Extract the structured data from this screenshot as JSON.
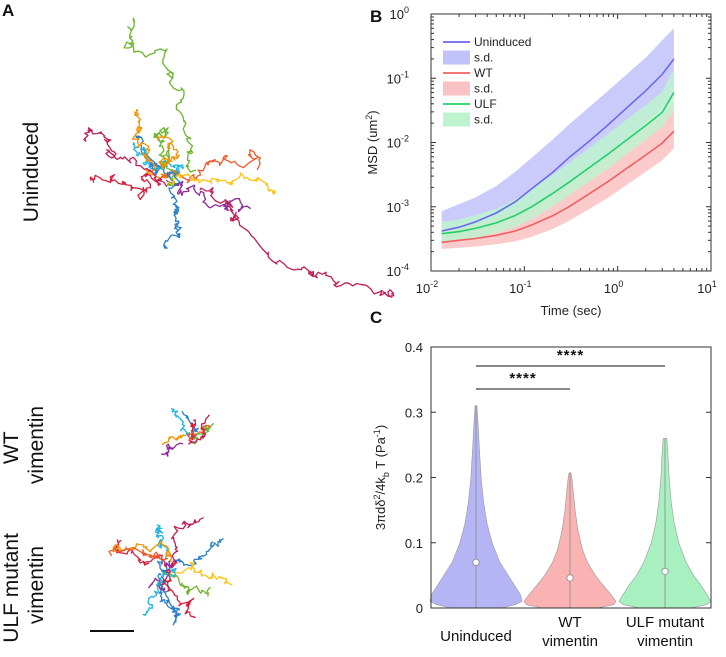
{
  "panels": {
    "a": {
      "letter": "A",
      "row_labels": [
        {
          "lines": [
            "Uninduced"
          ]
        },
        {
          "lines": [
            "WT",
            "vimentin"
          ]
        },
        {
          "lines": [
            "ULF mutant",
            "vimentin"
          ]
        }
      ],
      "track_colors": [
        "#2b7fc6",
        "#1fb3e0",
        "#d8203c",
        "#f39200",
        "#f05a28",
        "#8b2a9b",
        "#6cb52d",
        "#c21d55",
        "#ffc20e"
      ]
    },
    "b": {
      "letter": "B",
      "colors": {
        "uninduced": "#6a6af0",
        "wt": "#f06060",
        "ulf": "#22d06a",
        "uninduced_sd": "#c2c2fa",
        "wt_sd": "#fac2c2",
        "ulf_sd": "#bdf3cf"
      }
    },
    "c": {
      "letter": "C",
      "colors": {
        "uninduced": "#b5b5f5",
        "wt": "#fab3b3",
        "ulf": "#a8f0c0"
      },
      "significance": [
        {
          "label": "****",
          "from": 0,
          "to": 1
        },
        {
          "label": "****",
          "from": 0,
          "to": 2
        }
      ]
    }
  },
  "chart_data": [
    {
      "type": "line",
      "panel": "B",
      "x_scale": "log",
      "y_scale": "log",
      "xlabel": "Time (sec)",
      "ylabel": "MSD (um²)",
      "ylabel_parts": [
        "MSD (um",
        "2",
        ")"
      ],
      "xlim": [
        0.01,
        10
      ],
      "ylim": [
        0.0001,
        1
      ],
      "xticks": [
        0.01,
        0.1,
        1,
        10
      ],
      "xtick_labels": [
        [
          "10",
          "-2"
        ],
        [
          "10",
          "-1"
        ],
        [
          "10",
          "0"
        ],
        [
          "10",
          "1"
        ]
      ],
      "yticks": [
        0.0001,
        0.001,
        0.01,
        0.1,
        1
      ],
      "ytick_labels": [
        [
          "10",
          "-4"
        ],
        [
          "10",
          "-3"
        ],
        [
          "10",
          "-2"
        ],
        [
          "10",
          "-1"
        ],
        [
          "10",
          "0"
        ]
      ],
      "legend": [
        "Uninduced",
        "s.d.",
        "WT",
        "s.d.",
        "ULF",
        "s.d."
      ],
      "x": [
        0.013,
        0.02,
        0.03,
        0.05,
        0.08,
        0.12,
        0.2,
        0.3,
        0.5,
        0.8,
        1.2,
        2,
        3,
        4
      ],
      "series": [
        {
          "name": "Uninduced",
          "values": [
            0.00042,
            0.00048,
            0.00058,
            0.0008,
            0.0012,
            0.0019,
            0.0034,
            0.0058,
            0.0106,
            0.0191,
            0.0329,
            0.0639,
            0.115,
            0.2
          ],
          "lower": [
            0.00032,
            0.00035,
            0.0004,
            0.00052,
            0.00071,
            0.001,
            0.0016,
            0.0025,
            0.0042,
            0.0069,
            0.0111,
            0.0203,
            0.0346,
            0.055
          ],
          "upper": [
            0.00085,
            0.0011,
            0.0014,
            0.0021,
            0.0035,
            0.0058,
            0.011,
            0.019,
            0.036,
            0.065,
            0.11,
            0.21,
            0.39,
            0.6
          ]
        },
        {
          "name": "WT",
          "values": [
            0.00028,
            0.0003,
            0.00032,
            0.00036,
            0.00042,
            0.00052,
            0.00072,
            0.001,
            0.0016,
            0.0025,
            0.0038,
            0.0064,
            0.0098,
            0.015
          ],
          "lower": [
            0.00022,
            0.00023,
            0.00024,
            0.00026,
            0.00029,
            0.00034,
            0.00045,
            0.0006,
            0.00093,
            0.0014,
            0.0021,
            0.0035,
            0.0053,
            0.0081
          ],
          "upper": [
            0.00045,
            0.00049,
            0.00054,
            0.00064,
            0.00079,
            0.0011,
            0.0016,
            0.0024,
            0.0039,
            0.0064,
            0.01,
            0.0172,
            0.0272,
            0.043
          ]
        },
        {
          "name": "ULF",
          "values": [
            0.00038,
            0.00041,
            0.00046,
            0.00056,
            0.00073,
            0.001,
            0.0016,
            0.0024,
            0.0041,
            0.0067,
            0.0105,
            0.0184,
            0.0294,
            0.06
          ],
          "lower": [
            0.00028,
            0.0003,
            0.00033,
            0.00039,
            0.00049,
            0.00064,
            0.001,
            0.0015,
            0.0025,
            0.004,
            0.0063,
            0.011,
            0.0175,
            0.033
          ],
          "upper": [
            0.00058,
            0.00064,
            0.00074,
            0.00093,
            0.0013,
            0.0019,
            0.0031,
            0.0048,
            0.0083,
            0.0138,
            0.0218,
            0.0384,
            0.0617,
            0.14
          ]
        }
      ]
    },
    {
      "type": "violin",
      "panel": "C",
      "ylabel": "3πdδ²/4k_bT (Pa⁻¹)",
      "ylabel_parts": [
        "3πdδ",
        "2",
        "/4k",
        "b",
        " T (Pa",
        "-1",
        ")"
      ],
      "ylim": [
        0,
        0.4
      ],
      "yticks": [
        0,
        0.1,
        0.2,
        0.3,
        0.4
      ],
      "ytick_labels": [
        "0",
        "0.1",
        "0.2",
        "0.3",
        "0.4"
      ],
      "categories": [
        {
          "lines": [
            "Uninduced"
          ]
        },
        {
          "lines": [
            "WT",
            "vimentin"
          ]
        },
        {
          "lines": [
            "ULF mutant",
            "vimentin"
          ]
        }
      ],
      "series": [
        {
          "name": "Uninduced",
          "median": 0.07,
          "max": 0.31,
          "profile_y": [
            0,
            0.005,
            0.01,
            0.02,
            0.03,
            0.05,
            0.07,
            0.1,
            0.13,
            0.16,
            0.2,
            0.25,
            0.29,
            0.31
          ],
          "profile_w": [
            0.55,
            0.85,
            1.0,
            0.97,
            0.88,
            0.7,
            0.52,
            0.35,
            0.24,
            0.17,
            0.11,
            0.07,
            0.04,
            0.02
          ]
        },
        {
          "name": "WT vimentin",
          "median": 0.046,
          "max": 0.207,
          "profile_y": [
            0,
            0.005,
            0.01,
            0.02,
            0.035,
            0.05,
            0.07,
            0.09,
            0.12,
            0.15,
            0.18,
            0.2,
            0.207
          ],
          "profile_w": [
            0.6,
            0.95,
            1.0,
            0.9,
            0.72,
            0.55,
            0.38,
            0.27,
            0.17,
            0.11,
            0.07,
            0.04,
            0.02
          ]
        },
        {
          "name": "ULF mutant vimentin",
          "median": 0.056,
          "max": 0.26,
          "profile_y": [
            0,
            0.005,
            0.01,
            0.02,
            0.035,
            0.05,
            0.07,
            0.1,
            0.13,
            0.16,
            0.2,
            0.24,
            0.26
          ],
          "profile_w": [
            0.55,
            0.9,
            1.0,
            0.92,
            0.78,
            0.62,
            0.46,
            0.3,
            0.2,
            0.14,
            0.09,
            0.06,
            0.04
          ]
        }
      ]
    }
  ]
}
